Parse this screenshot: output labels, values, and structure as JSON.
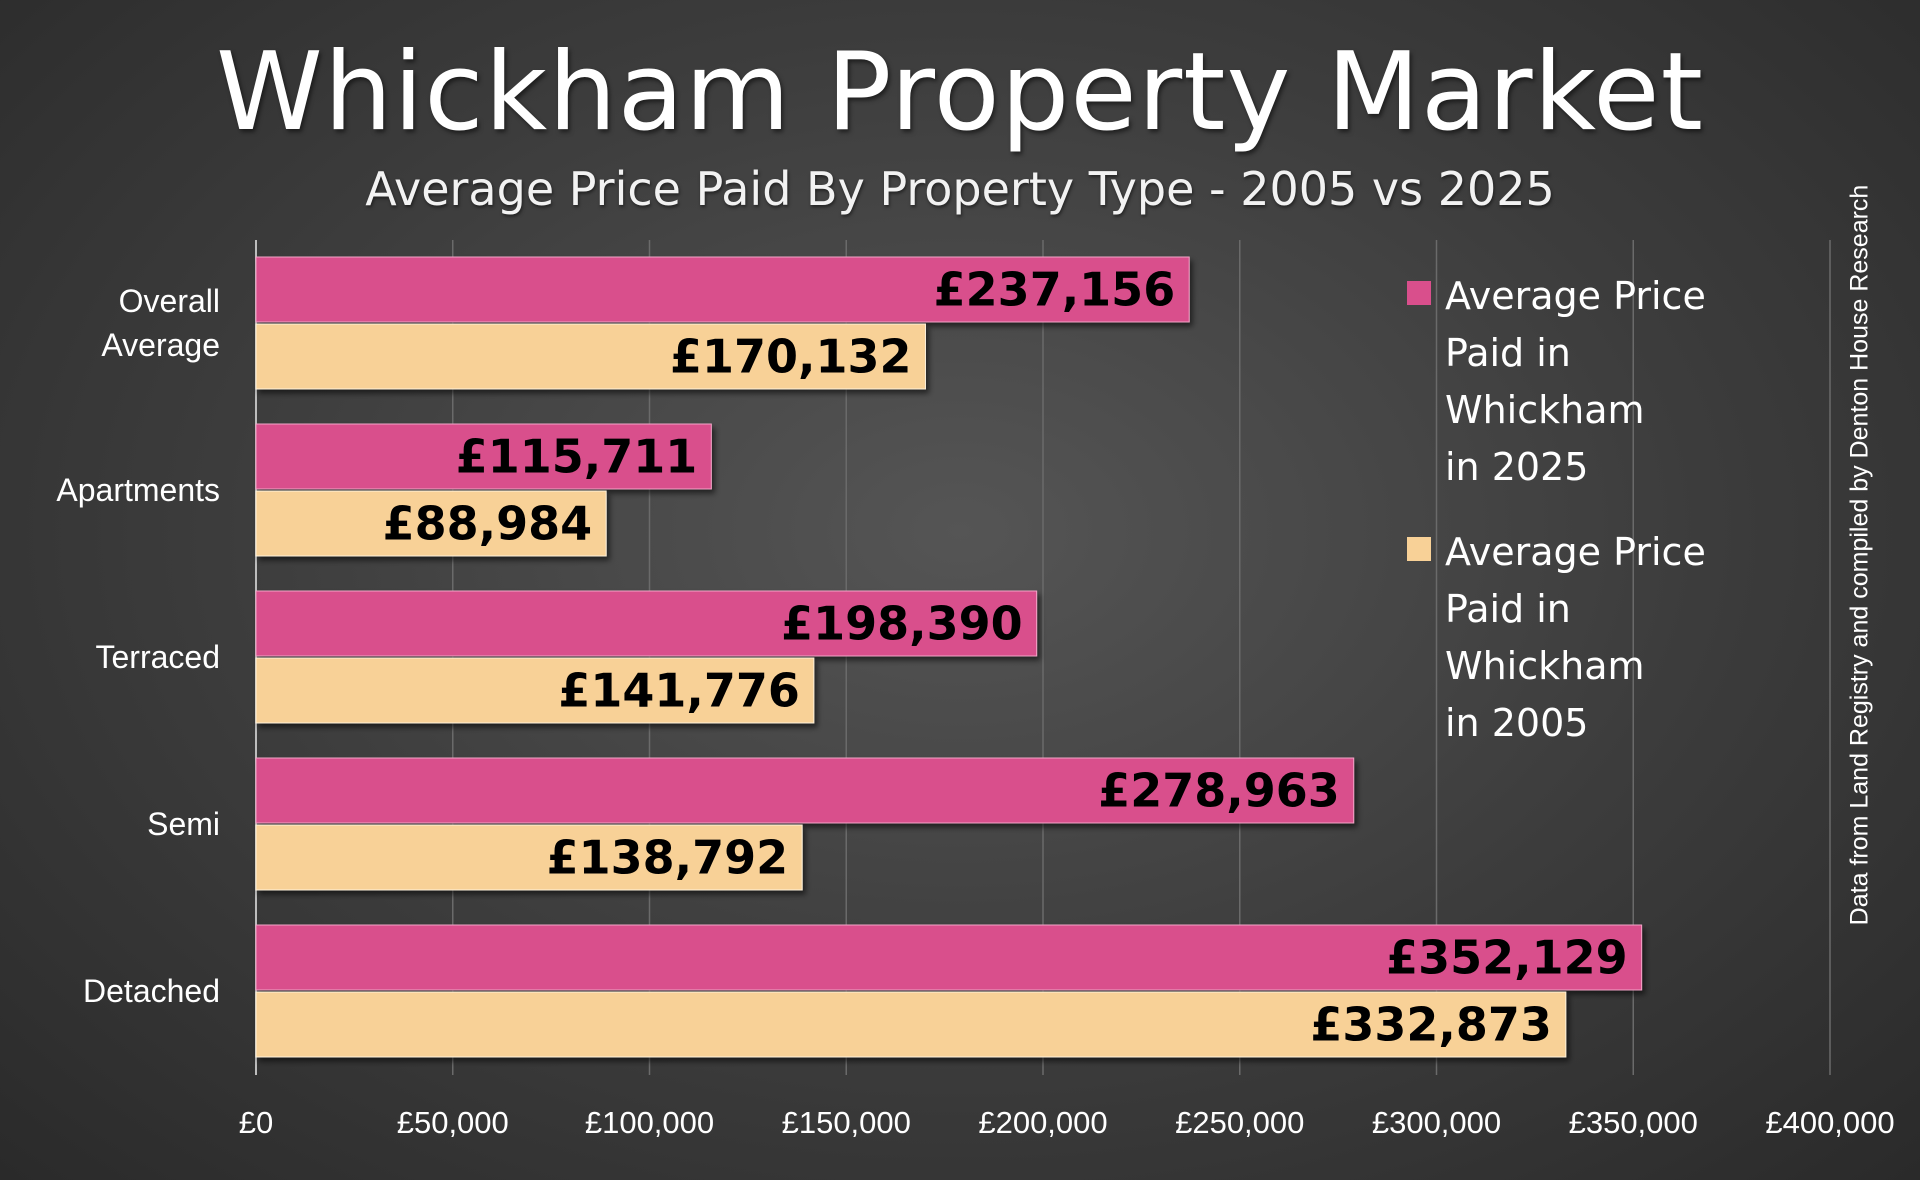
{
  "chart_data": {
    "type": "bar",
    "orientation": "horizontal",
    "title": "Whickham Property Market",
    "subtitle": "Average Price Paid By Property Type - 2005 vs 2025",
    "categories": [
      "Overall\nAverage",
      "Apartments",
      "Terraced",
      "Semi",
      "Detached"
    ],
    "series": [
      {
        "name": "Average Price\nPaid in\nWhickham\nin 2025",
        "color": "#d94f8c",
        "values": [
          237156,
          115711,
          198390,
          278963,
          352129
        ],
        "labels": [
          "£237,156",
          "£115,711",
          "£198,390",
          "£278,963",
          "£352,129"
        ]
      },
      {
        "name": "Average Price\nPaid in\nWhickham\nin 2005",
        "color": "#f8d197",
        "values": [
          170132,
          88984,
          141776,
          138792,
          332873
        ],
        "labels": [
          "£170,132",
          "£88,984",
          "£141,776",
          "£138,792",
          "£332,873"
        ]
      }
    ],
    "xlim": [
      0,
      400000
    ],
    "x_ticks": [
      0,
      50000,
      100000,
      150000,
      200000,
      250000,
      300000,
      350000,
      400000
    ],
    "x_tick_labels": [
      "£0",
      "£50,000",
      "£100,000",
      "£150,000",
      "£200,000",
      "£250,000",
      "£300,000",
      "£350,000",
      "£400,000"
    ],
    "grid": true,
    "legend_position": "right",
    "source_note": "Data from Land Registry and compiled by Denton House Research"
  }
}
